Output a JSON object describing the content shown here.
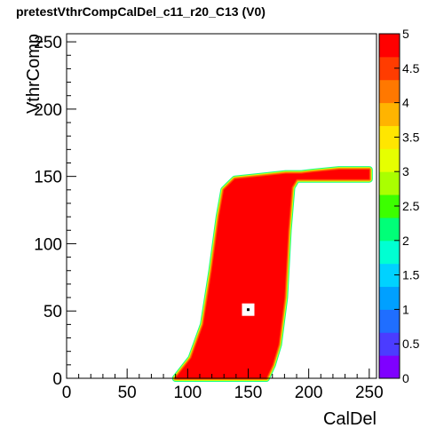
{
  "title": "pretestVthrCompCalDel_c11_r20_C13 (V0)",
  "chart_data": {
    "type": "heatmap",
    "title": "pretestVthrCompCalDel_c11_r20_C13 (V0)",
    "xlabel": "CalDel",
    "ylabel": "VthrComp",
    "xlim": [
      0,
      256
    ],
    "ylim": [
      0,
      256
    ],
    "x_ticks": [
      0,
      50,
      100,
      150,
      200,
      250
    ],
    "y_ticks": [
      0,
      50,
      100,
      150,
      200,
      250
    ],
    "zlim": [
      0,
      5
    ],
    "z_ticks": [
      "0",
      "0.5",
      "1",
      "1.5",
      "2",
      "2.5",
      "3",
      "3.5",
      "4",
      "4.5",
      "5"
    ],
    "palette": [
      "#7f00ff",
      "#4b3cff",
      "#1f6eff",
      "#00a0ff",
      "#00d2ff",
      "#00ffd2",
      "#00ff78",
      "#3cff00",
      "#aaff00",
      "#e6ff00",
      "#ffe600",
      "#ffb400",
      "#ff7800",
      "#ff3c00",
      "#ff0000"
    ],
    "data_region": {
      "description_value": 5,
      "boundary_polygon": [
        [
          90,
          0
        ],
        [
          103,
          15
        ],
        [
          113,
          40
        ],
        [
          120,
          80
        ],
        [
          126,
          120
        ],
        [
          130,
          140
        ],
        [
          139,
          148
        ],
        [
          160,
          150
        ],
        [
          181,
          152
        ],
        [
          194,
          152
        ],
        [
          203,
          153
        ],
        [
          225,
          155
        ],
        [
          250,
          155
        ],
        [
          250,
          148
        ],
        [
          190,
          148
        ],
        [
          186,
          142
        ],
        [
          183,
          110
        ],
        [
          180,
          60
        ],
        [
          175,
          25
        ],
        [
          170,
          10
        ],
        [
          165,
          0
        ]
      ],
      "edge_values": [
        2,
        3,
        4,
        4.5
      ],
      "hole": [
        150,
        51
      ],
      "hole_value": 0
    }
  }
}
